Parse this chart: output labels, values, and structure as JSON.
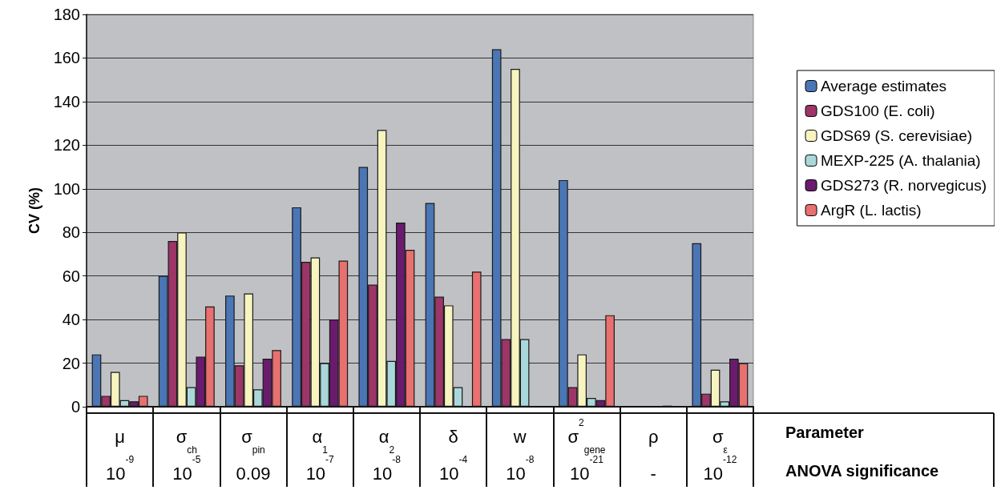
{
  "chart_data": {
    "type": "bar",
    "ylabel": "CV (%)",
    "xlabel": "Parameter",
    "categories": [
      "μ",
      "σ$_{ch}$",
      "σ$_{pin}$",
      "α$_{1}$",
      "α$_{2}$",
      "δ",
      "w",
      "σ$^{2}$$_{gene}$",
      "ρ",
      "σ$_{ε}$"
    ],
    "series": [
      {
        "name": "Average estimates",
        "color": "#4a76b5",
        "values": [
          24,
          60,
          51,
          91.5,
          110,
          93.5,
          164,
          104,
          null,
          75
        ]
      },
      {
        "name": "GDS100 (E. coli)",
        "color": "#9e3569",
        "values": [
          5,
          76,
          19,
          66.5,
          56,
          50.5,
          31,
          9,
          null,
          6
        ]
      },
      {
        "name": "GDS69 (S. cerevisiae)",
        "color": "#f7f4c0",
        "values": [
          16,
          80,
          52,
          68.5,
          127,
          46.5,
          155,
          24,
          null,
          17
        ]
      },
      {
        "name": "MEXP-225 (A. thalania)",
        "color": "#aad8da",
        "values": [
          3,
          9,
          8,
          20,
          21,
          9,
          31,
          4,
          null,
          2.5
        ]
      },
      {
        "name": "GDS273 (R. norvegicus)",
        "color": "#6b1b6e",
        "values": [
          2.5,
          23,
          22,
          40,
          84.5,
          null,
          null,
          3,
          0.5,
          22
        ]
      },
      {
        "name": "ArgR (L. lactis)",
        "color": "#e87070",
        "values": [
          5,
          46,
          26,
          67,
          72,
          62,
          null,
          42,
          null,
          20
        ]
      }
    ],
    "ylim": [
      0,
      180
    ],
    "yticks": [
      0,
      20,
      40,
      60,
      80,
      100,
      120,
      140,
      160,
      180
    ],
    "grid": "y",
    "legend": "right",
    "annotations": [
      "ANOVA significance",
      "10$^{-9}$",
      "10$^{-5}$",
      "0.09",
      "10$^{-7}$",
      "10$^{-8}$",
      "10$^{-4}$",
      "10$^{-8}$",
      "10$^{-21}$",
      "-",
      "10$^{-12}$"
    ]
  }
}
